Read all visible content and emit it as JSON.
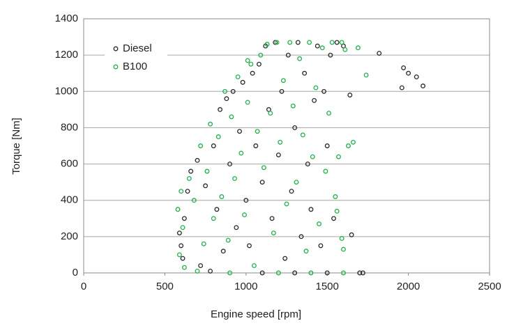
{
  "chart_data": {
    "type": "scatter",
    "x_label": "Engine speed [rpm]",
    "y_label": "Torque [Nm]",
    "xlim": [
      0,
      2500
    ],
    "xticks": [
      0,
      500,
      1000,
      1500,
      2000,
      2500
    ],
    "ylim": [
      0,
      1400
    ],
    "yticks": [
      0,
      200,
      400,
      600,
      800,
      1000,
      1200,
      1400
    ],
    "grid": true,
    "legend": "upper left",
    "series": [
      {
        "name": "Diesel",
        "color": "#2b2b2b",
        "x": [
          590,
          600,
          610,
          620,
          640,
          660,
          700,
          720,
          750,
          780,
          800,
          820,
          840,
          860,
          880,
          900,
          920,
          940,
          960,
          980,
          1000,
          1020,
          1040,
          1060,
          1080,
          1100,
          1120,
          1140,
          1160,
          1180,
          1200,
          1220,
          1240,
          1260,
          1280,
          1300,
          1320,
          1340,
          1360,
          1380,
          1400,
          1420,
          1440,
          1460,
          1480,
          1500,
          1520,
          1540,
          1560,
          1600,
          1640,
          1650,
          1700,
          1720,
          1820,
          1960,
          1970,
          2000,
          2050,
          2090,
          1100,
          1300,
          1500
        ],
        "values": [
          220,
          150,
          80,
          300,
          450,
          560,
          620,
          40,
          480,
          10,
          700,
          350,
          900,
          120,
          960,
          600,
          1000,
          250,
          780,
          1050,
          400,
          150,
          1100,
          700,
          1150,
          500,
          1250,
          900,
          300,
          1270,
          650,
          1000,
          80,
          1200,
          450,
          800,
          1270,
          200,
          1100,
          600,
          350,
          950,
          1250,
          150,
          1000,
          700,
          1200,
          300,
          1270,
          1250,
          980,
          210,
          0,
          0,
          1210,
          1020,
          1130,
          1100,
          1080,
          1030,
          0,
          0,
          0
        ]
      },
      {
        "name": "B100",
        "color": "#22b14c",
        "x": [
          580,
          590,
          600,
          610,
          620,
          650,
          680,
          700,
          720,
          740,
          760,
          780,
          800,
          830,
          850,
          870,
          890,
          910,
          930,
          950,
          970,
          990,
          1010,
          1030,
          1050,
          1070,
          1090,
          1110,
          1130,
          1150,
          1170,
          1190,
          1210,
          1230,
          1250,
          1270,
          1290,
          1310,
          1330,
          1350,
          1370,
          1390,
          1410,
          1430,
          1450,
          1470,
          1490,
          1510,
          1530,
          1550,
          1570,
          1590,
          1610,
          1630,
          1660,
          1690,
          1740,
          1590,
          1600,
          1560,
          900,
          1200,
          1400,
          1600,
          1010
        ],
        "values": [
          350,
          100,
          450,
          250,
          30,
          520,
          400,
          10,
          700,
          160,
          560,
          820,
          300,
          750,
          420,
          1000,
          180,
          860,
          520,
          1080,
          660,
          320,
          940,
          1150,
          40,
          780,
          1200,
          580,
          1260,
          880,
          220,
          1270,
          720,
          1060,
          380,
          1270,
          920,
          500,
          1180,
          760,
          120,
          1270,
          640,
          1020,
          270,
          1240,
          560,
          880,
          1270,
          420,
          640,
          1270,
          1230,
          700,
          720,
          1240,
          1090,
          190,
          130,
          340,
          0,
          0,
          0,
          0,
          1170
        ]
      }
    ]
  }
}
